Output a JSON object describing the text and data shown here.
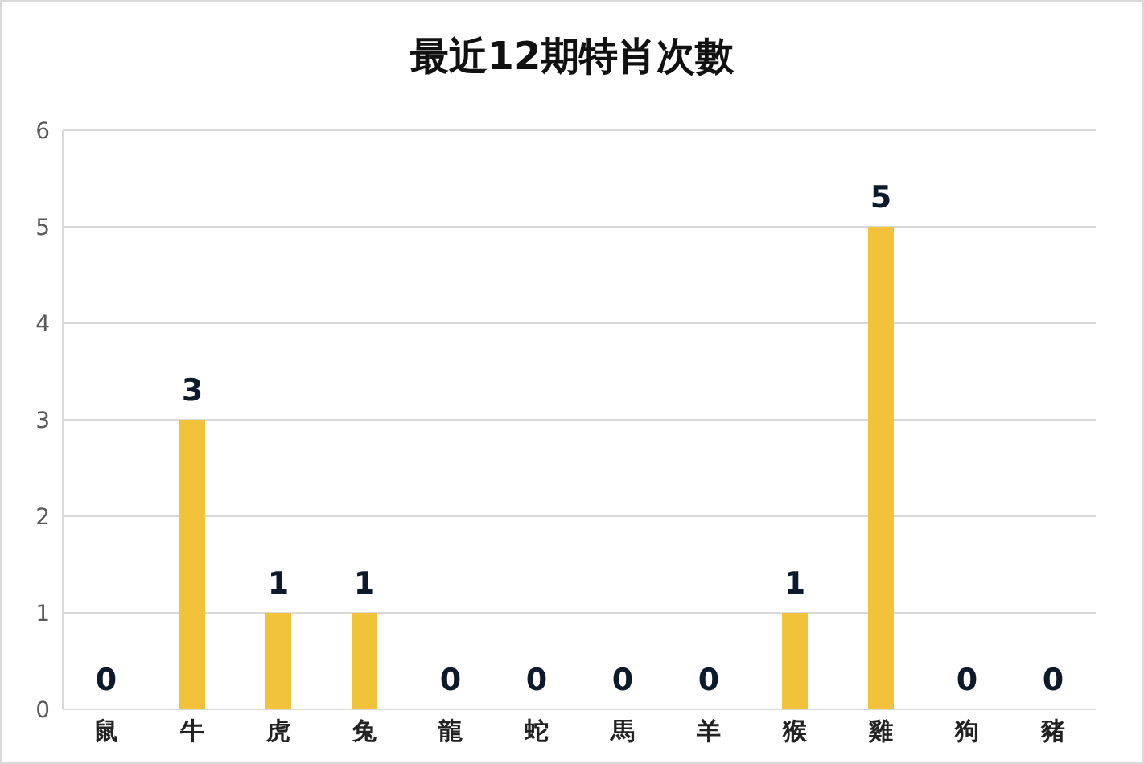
{
  "chart_data": {
    "type": "bar",
    "title": "最近12期特肖次數",
    "categories": [
      "鼠",
      "牛",
      "虎",
      "兔",
      "龍",
      "蛇",
      "馬",
      "羊",
      "猴",
      "雞",
      "狗",
      "豬"
    ],
    "values": [
      0,
      3,
      1,
      1,
      0,
      0,
      0,
      0,
      1,
      5,
      0,
      0
    ],
    "color": "#f2c23a",
    "ylim": [
      0,
      6
    ],
    "yticks": [
      0,
      1,
      2,
      3,
      4,
      5,
      6
    ],
    "grid": "y",
    "data_labels": true,
    "legend": false
  }
}
